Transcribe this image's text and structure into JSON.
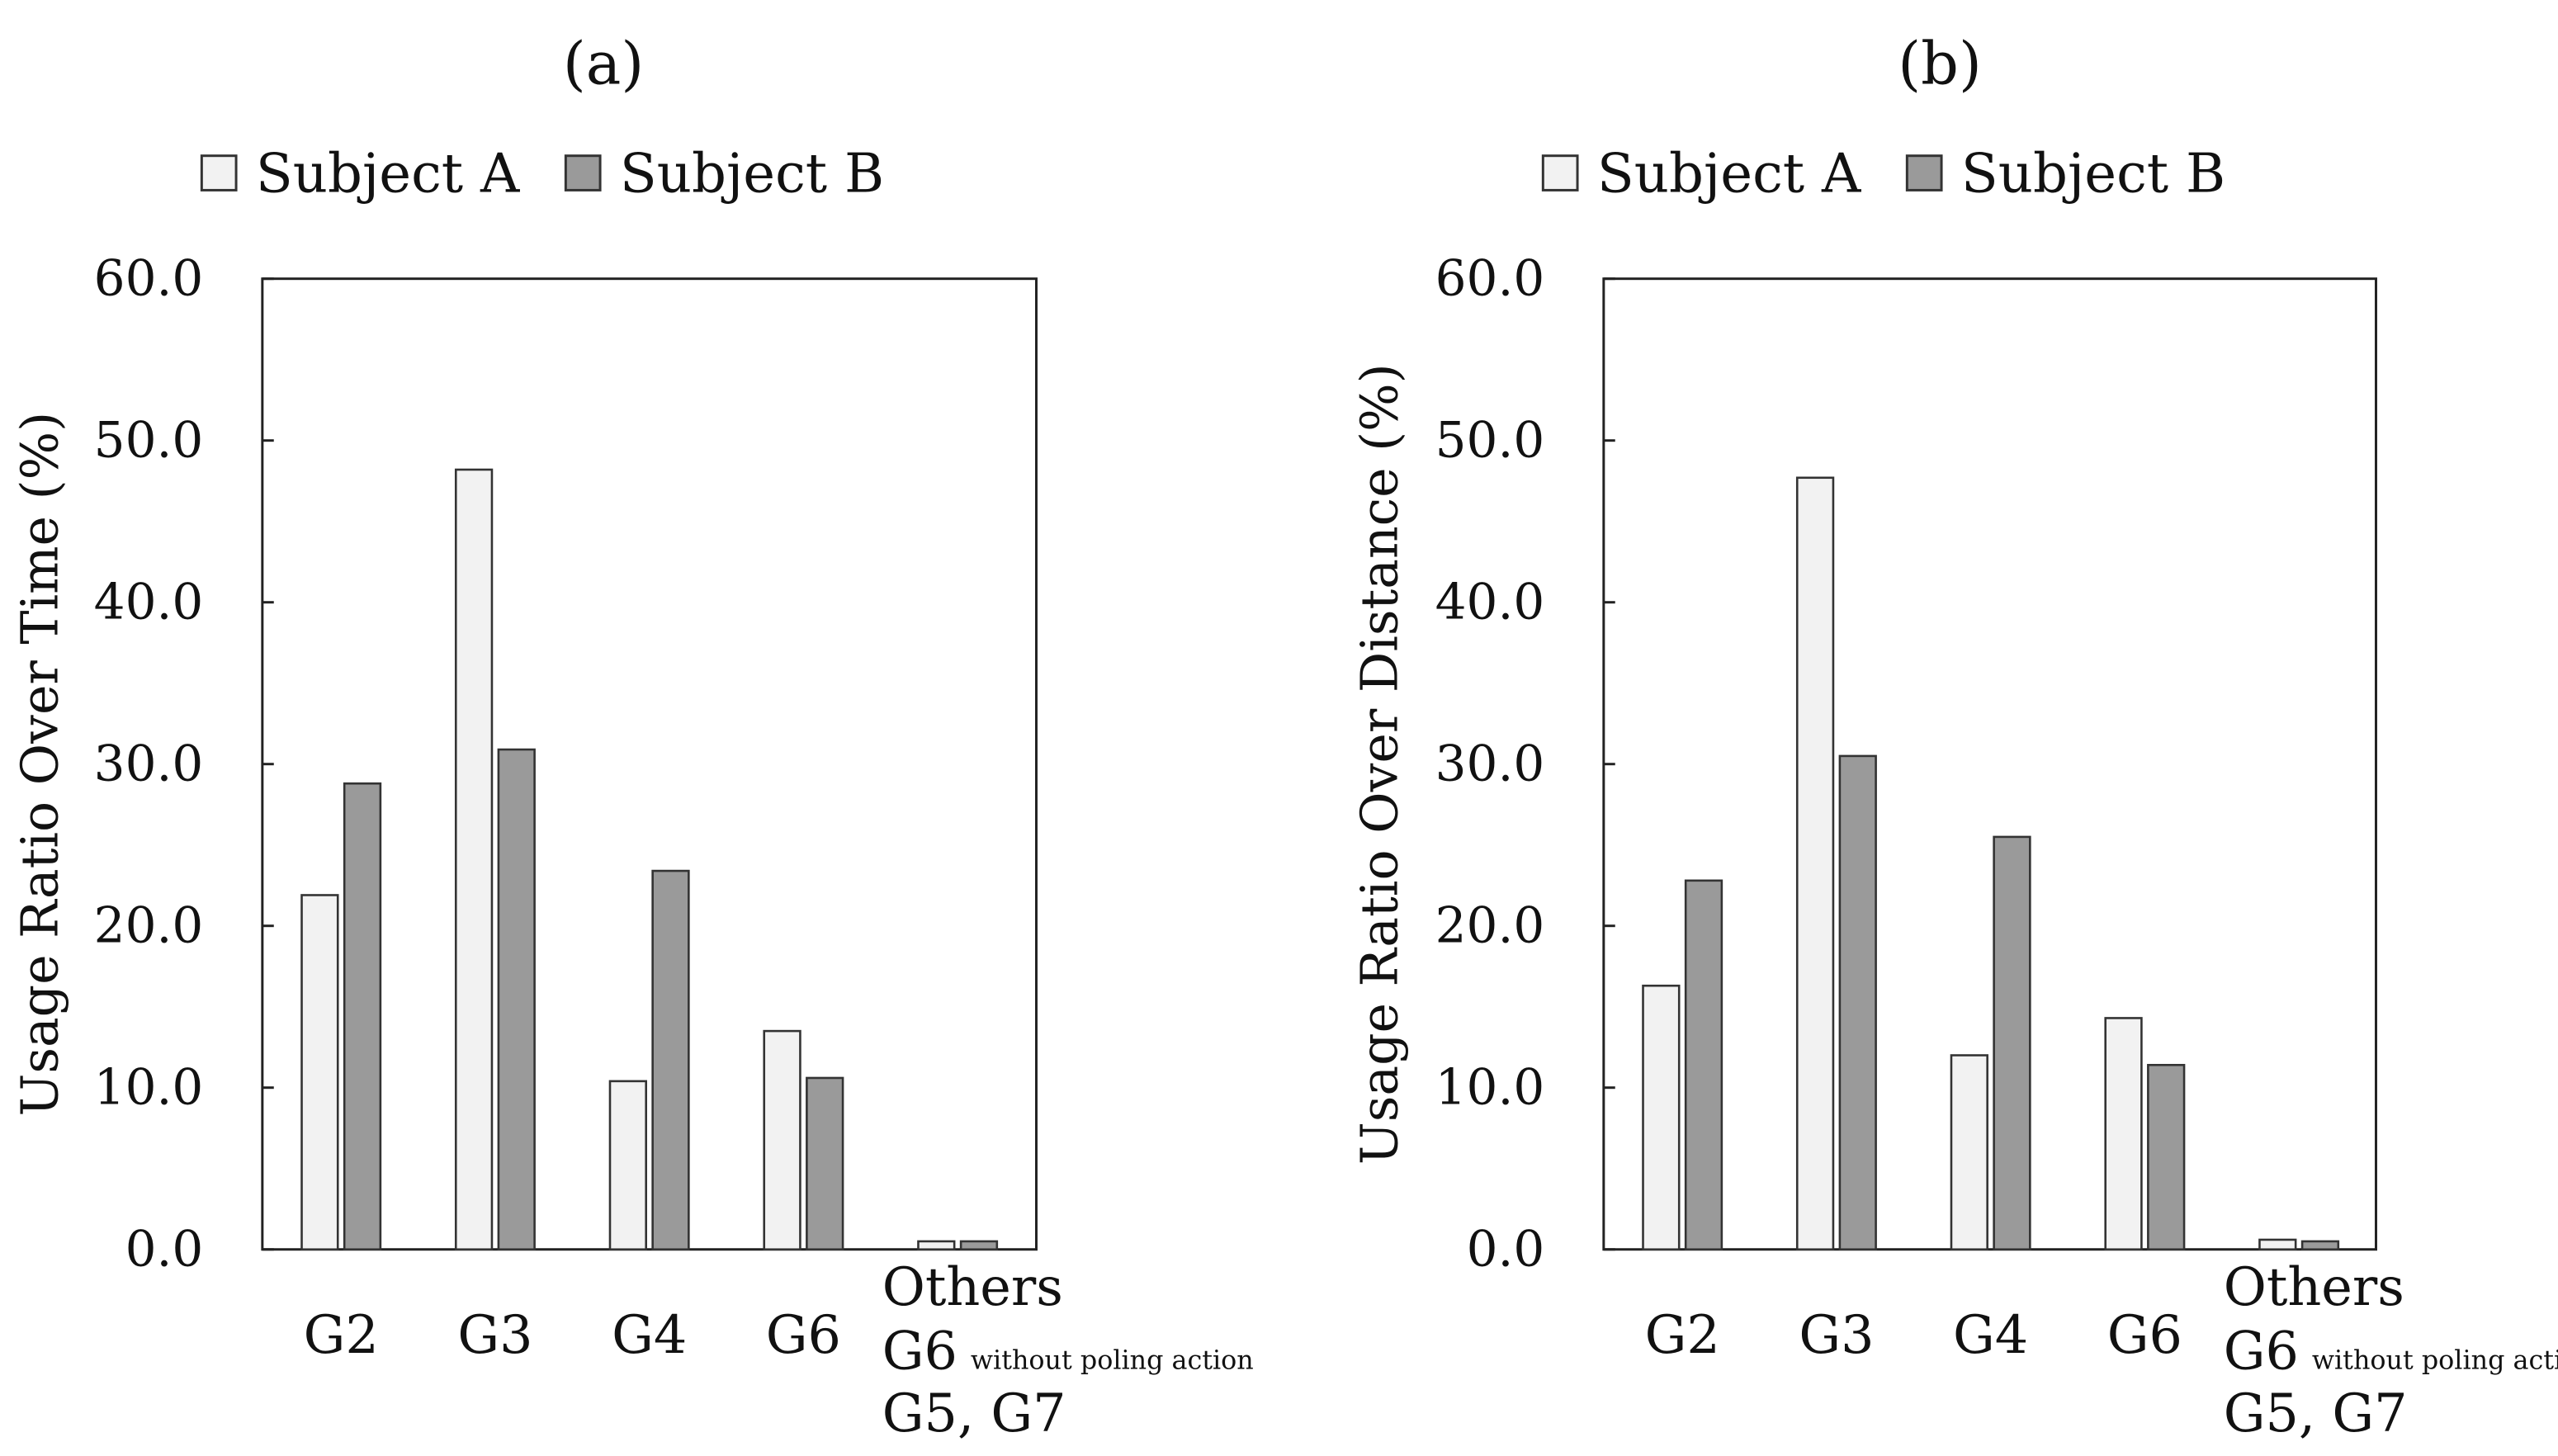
{
  "chart_data": [
    {
      "type": "bar",
      "title": "(a)",
      "ylabel": "Usage Ratio Over Time (%)",
      "ylim": [
        0,
        60
      ],
      "yticks": [
        "0.0",
        "10.0",
        "20.0",
        "30.0",
        "40.0",
        "50.0",
        "60.0"
      ],
      "categories": [
        "G2",
        "G3",
        "G4",
        "G6",
        "Others"
      ],
      "others_label": {
        "line1": "Others",
        "line2_main": "G6",
        "line2_small": "without poling action",
        "line3": "G5, G7"
      },
      "legend_position": "top",
      "series": [
        {
          "name": "Subject A",
          "color": "#f2f2f2",
          "values": [
            21.9,
            48.2,
            10.4,
            13.5,
            0.5
          ]
        },
        {
          "name": "Subject B",
          "color": "#9a9a9a",
          "values": [
            28.8,
            30.9,
            23.4,
            10.6,
            0.5
          ]
        }
      ]
    },
    {
      "type": "bar",
      "title": "(b)",
      "ylabel": "Usage Ratio Over Distance (%)",
      "ylim": [
        0,
        60
      ],
      "yticks": [
        "0.0",
        "10.0",
        "20.0",
        "30.0",
        "40.0",
        "50.0",
        "60.0"
      ],
      "categories": [
        "G2",
        "G3",
        "G4",
        "G6",
        "Others"
      ],
      "others_label": {
        "line1": "Others",
        "line2_main": "G6",
        "line2_small": "without poling action",
        "line3": "G5, G7"
      },
      "legend_position": "top",
      "series": [
        {
          "name": "Subject A",
          "color": "#f2f2f2",
          "values": [
            16.3,
            47.7,
            12.0,
            14.3,
            0.6
          ]
        },
        {
          "name": "Subject B",
          "color": "#9a9a9a",
          "values": [
            22.8,
            30.5,
            25.5,
            11.4,
            0.5
          ]
        }
      ]
    }
  ]
}
